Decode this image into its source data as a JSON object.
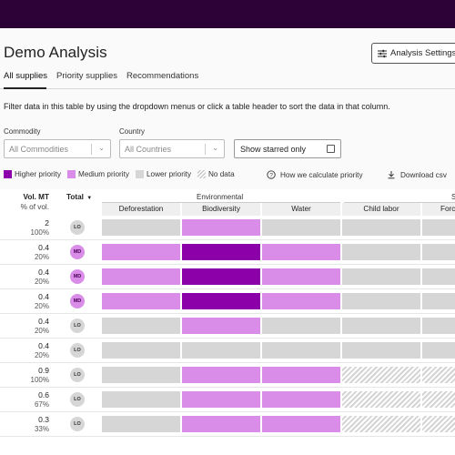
{
  "header": {
    "title": "Demo Analysis",
    "settings_label": "Analysis Settings"
  },
  "tabs": [
    {
      "label": "All supplies",
      "active": true
    },
    {
      "label": "Priority supplies",
      "active": false
    },
    {
      "label": "Recommendations",
      "active": false
    }
  ],
  "filter_text": "Filter data in this table by using the dropdown menus or click a table header to sort the data in that column.",
  "filters": {
    "commodity_label": "Commodity",
    "commodity_placeholder": "All Commodities",
    "country_label": "Country",
    "country_placeholder": "All Countries",
    "starred_label": "Show starred only"
  },
  "legend": {
    "high": "Higher priority",
    "medium": "Medium priority",
    "low": "Lower priority",
    "nodata": "No data",
    "how_link": "How we calculate priority",
    "download": "Download csv"
  },
  "colors": {
    "high": "#8b00a8",
    "medium": "#da8de8",
    "low": "#d6d6d6",
    "topbar": "#2d0237"
  },
  "table": {
    "vol_header": "Vol. MT",
    "vol_sub": "% of vol.",
    "total_header": "Total",
    "groups": [
      "Environmental",
      "S"
    ],
    "columns": [
      "Deforestation",
      "Biodiversity",
      "Water",
      "Child labor",
      "Forc"
    ],
    "rows": [
      {
        "vol": "2",
        "pct": "100%",
        "total": "LO",
        "cells": [
          "low",
          "med",
          "low",
          "low",
          "low"
        ]
      },
      {
        "vol": "0.4",
        "pct": "20%",
        "total": "MD",
        "cells": [
          "med",
          "high",
          "med",
          "low",
          "low"
        ]
      },
      {
        "vol": "0.4",
        "pct": "20%",
        "total": "MD",
        "cells": [
          "med",
          "high",
          "med",
          "low",
          "low"
        ]
      },
      {
        "vol": "0.4",
        "pct": "20%",
        "total": "MD",
        "cells": [
          "med",
          "high",
          "med",
          "low",
          "low"
        ]
      },
      {
        "vol": "0.4",
        "pct": "20%",
        "total": "LO",
        "cells": [
          "low",
          "med",
          "low",
          "low",
          "low"
        ]
      },
      {
        "vol": "0.4",
        "pct": "20%",
        "total": "LO",
        "cells": [
          "low",
          "low",
          "low",
          "low",
          "low"
        ]
      },
      {
        "vol": "0.9",
        "pct": "100%",
        "total": "LO",
        "cells": [
          "low",
          "med",
          "med",
          "nd",
          "nd"
        ]
      },
      {
        "vol": "0.6",
        "pct": "67%",
        "total": "LO",
        "cells": [
          "low",
          "med",
          "med",
          "nd",
          "nd"
        ]
      },
      {
        "vol": "0.3",
        "pct": "33%",
        "total": "LO",
        "cells": [
          "low",
          "med",
          "med",
          "nd",
          "nd"
        ]
      }
    ]
  }
}
